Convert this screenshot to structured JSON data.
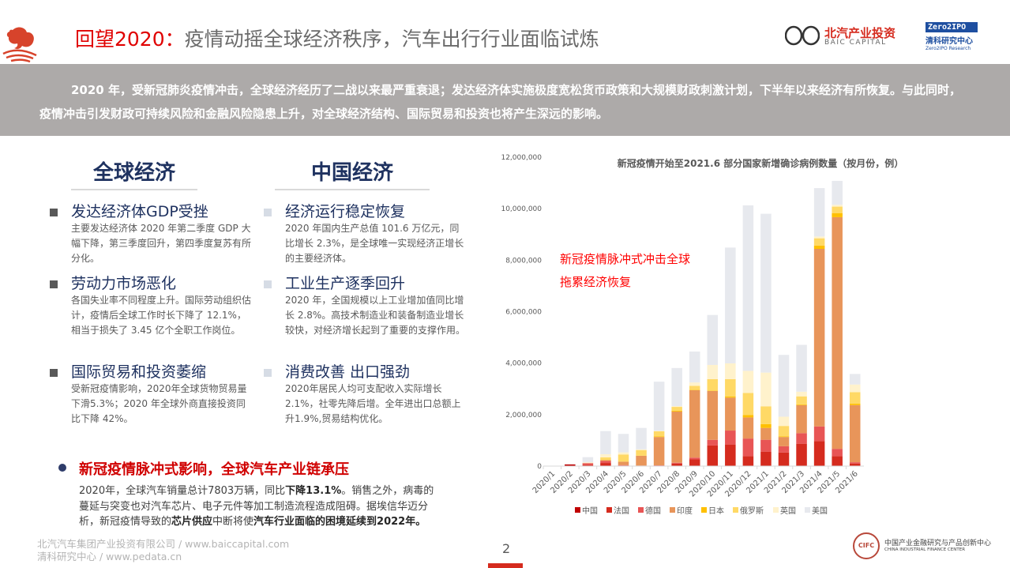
{
  "header": {
    "title_red": "回望2020：",
    "title_rest": "疫情动摇全球经济秩序，汽车出行行业面临试炼",
    "logo1_cn": "北汽产业投资",
    "logo1_en": "BAIC CAPITAL",
    "logo2_top": "Zero2IPO",
    "logo2_cn": "清科研究中心",
    "logo2_en": "Zero2IPO Research"
  },
  "summary": "2020 年，受新冠肺炎疫情冲击，全球经济经历了二战以来最严重衰退；发达经济体实施极度宽松货币政策和大规模财政刺激计划，下半年以来经济有所恢复。与此同时，疫情冲击引发财政可持续风险和金融风险隐患上升，对全球经济结构、国际贸易和投资也将产生深远的影响。",
  "global": {
    "heading": "全球经济",
    "items": [
      {
        "title": "发达经济体GDP受挫",
        "body": "主要发达经济体 2020 年第二季度 GDP 大幅下降，第三季度回升，第四季度复苏有所分化。"
      },
      {
        "title": "劳动力市场恶化",
        "body": "各国失业率不同程度上升。国际劳动组织估计，疫情后全球工作时长下降了 12.1%，相当于损失了 3.45 亿个全职工作岗位。"
      },
      {
        "title": "国际贸易和投资萎缩",
        "body": "受新冠疫情影响，2020年全球货物贸易量下滑5.3%；2020 年全球外商直接投资同比下降 42%。"
      }
    ]
  },
  "china": {
    "heading": "中国经济",
    "items": [
      {
        "title": "经济运行稳定恢复",
        "body": "2020 年国内生产总值 101.6 万亿元，同比增长 2.3%，是全球唯一实现经济正增长的主要经济体。"
      },
      {
        "title": "工业生产逐季回升",
        "body": "2020 年，全国规模以上工业增加值同比增长 2.8%。高技术制造业和装备制造业增长较快，对经济增长起到了重要的支撑作用。"
      },
      {
        "title": "消费改善 出口强劲",
        "body": "2020年居民人均可支配收入实际增长2.1%，社零先降后增。全年进出口总额上升1.9%,贸易结构优化。"
      }
    ]
  },
  "auto": {
    "heading": "新冠疫情脉冲式影响，全球汽车产业链承压",
    "segments": [
      {
        "t": "2020年，全球汽车销量总计7803万辆，同比",
        "b": false
      },
      {
        "t": "下降13.1%",
        "b": true
      },
      {
        "t": "。销售之外，病毒的蔓延与突变也对汽车芯片、电子元件等加工制造流程造成阻碍。据埃信华迈分析，新冠疫情导致的",
        "b": false
      },
      {
        "t": "芯片供应",
        "b": true
      },
      {
        "t": "中断将使",
        "b": false
      },
      {
        "t": "汽车行业面临的困境延续到2022年。",
        "b": true
      }
    ]
  },
  "footer": {
    "line1": "北汽汽车集团产业投资有限公司 / www.baiccapital.com",
    "line2": "清科研究中心 / www.pedata.cn",
    "page": "2",
    "logo_cn": "中国产业金融研究与产品创新中心",
    "logo_en": "CHINA INDUSTRIAL FINANCE CENTER",
    "logo_badge": "CIFC"
  },
  "chart_data": {
    "type": "bar",
    "stacked": true,
    "title": "新冠疫情开始至2021.6 部分国家新增确诊病例数量（按月份，例）",
    "annotation": [
      "新冠疫情脉冲式冲击全球",
      "拖累经济恢复"
    ],
    "ylim": [
      0,
      12000000
    ],
    "yticks": [
      "0",
      "2,000,000",
      "4,000,000",
      "6,000,000",
      "8,000,000",
      "10,000,000",
      "12,000,000"
    ],
    "legend_position": "bottom",
    "categories": [
      "2020/1",
      "2020/2",
      "2020/3",
      "2020/4",
      "2020/5",
      "2020/6",
      "2020/7",
      "2020/8",
      "2020/9",
      "2020/10",
      "2020/11",
      "2020/12",
      "2021/1",
      "2021/2",
      "2021/3",
      "2021/4",
      "2021/5",
      "2021/6"
    ],
    "series": [
      {
        "name": "中国",
        "color": "#c00000",
        "values": [
          10000,
          68000,
          2000,
          1000,
          0,
          0,
          0,
          0,
          0,
          0,
          0,
          0,
          3000,
          0,
          0,
          0,
          0,
          0
        ]
      },
      {
        "name": "法国",
        "color": "#d52b1e",
        "values": [
          0,
          0,
          50000,
          120000,
          20000,
          10000,
          20000,
          100000,
          260000,
          800000,
          840000,
          390000,
          560000,
          530000,
          870000,
          970000,
          390000,
          100000
        ]
      },
      {
        "name": "德国",
        "color": "#e85555",
        "values": [
          0,
          0,
          60000,
          80000,
          20000,
          10000,
          10000,
          30000,
          70000,
          220000,
          540000,
          680000,
          460000,
          240000,
          410000,
          570000,
          280000,
          50000
        ]
      },
      {
        "name": "印度",
        "color": "#e8955a",
        "values": [
          0,
          0,
          1000,
          30000,
          130000,
          380000,
          1100000,
          1990000,
          2620000,
          1900000,
          1280000,
          820000,
          460000,
          360000,
          1090000,
          6900000,
          9000000,
          2220000
        ]
      },
      {
        "name": "日本",
        "color": "#ffc000",
        "values": [
          0,
          0,
          2000,
          10000,
          2000,
          2000,
          20000,
          30000,
          20000,
          20000,
          40000,
          90000,
          150000,
          20000,
          30000,
          130000,
          160000,
          60000
        ]
      },
      {
        "name": "俄罗斯",
        "color": "#ffd966",
        "values": [
          0,
          0,
          2000,
          100000,
          280000,
          220000,
          200000,
          150000,
          150000,
          440000,
          680000,
          860000,
          690000,
          410000,
          310000,
          280000,
          250000,
          440000
        ]
      },
      {
        "name": "英国",
        "color": "#fff2cc",
        "values": [
          0,
          0,
          30000,
          120000,
          80000,
          30000,
          20000,
          30000,
          130000,
          550000,
          610000,
          860000,
          1310000,
          360000,
          180000,
          70000,
          70000,
          300000
        ]
      },
      {
        "name": "美国",
        "color": "#e7e9ee",
        "values": [
          0,
          10000,
          200000,
          900000,
          720000,
          830000,
          1910000,
          1480000,
          1200000,
          1940000,
          4500000,
          6430000,
          6170000,
          2400000,
          1820000,
          1880000,
          930000,
          410000
        ]
      }
    ]
  }
}
